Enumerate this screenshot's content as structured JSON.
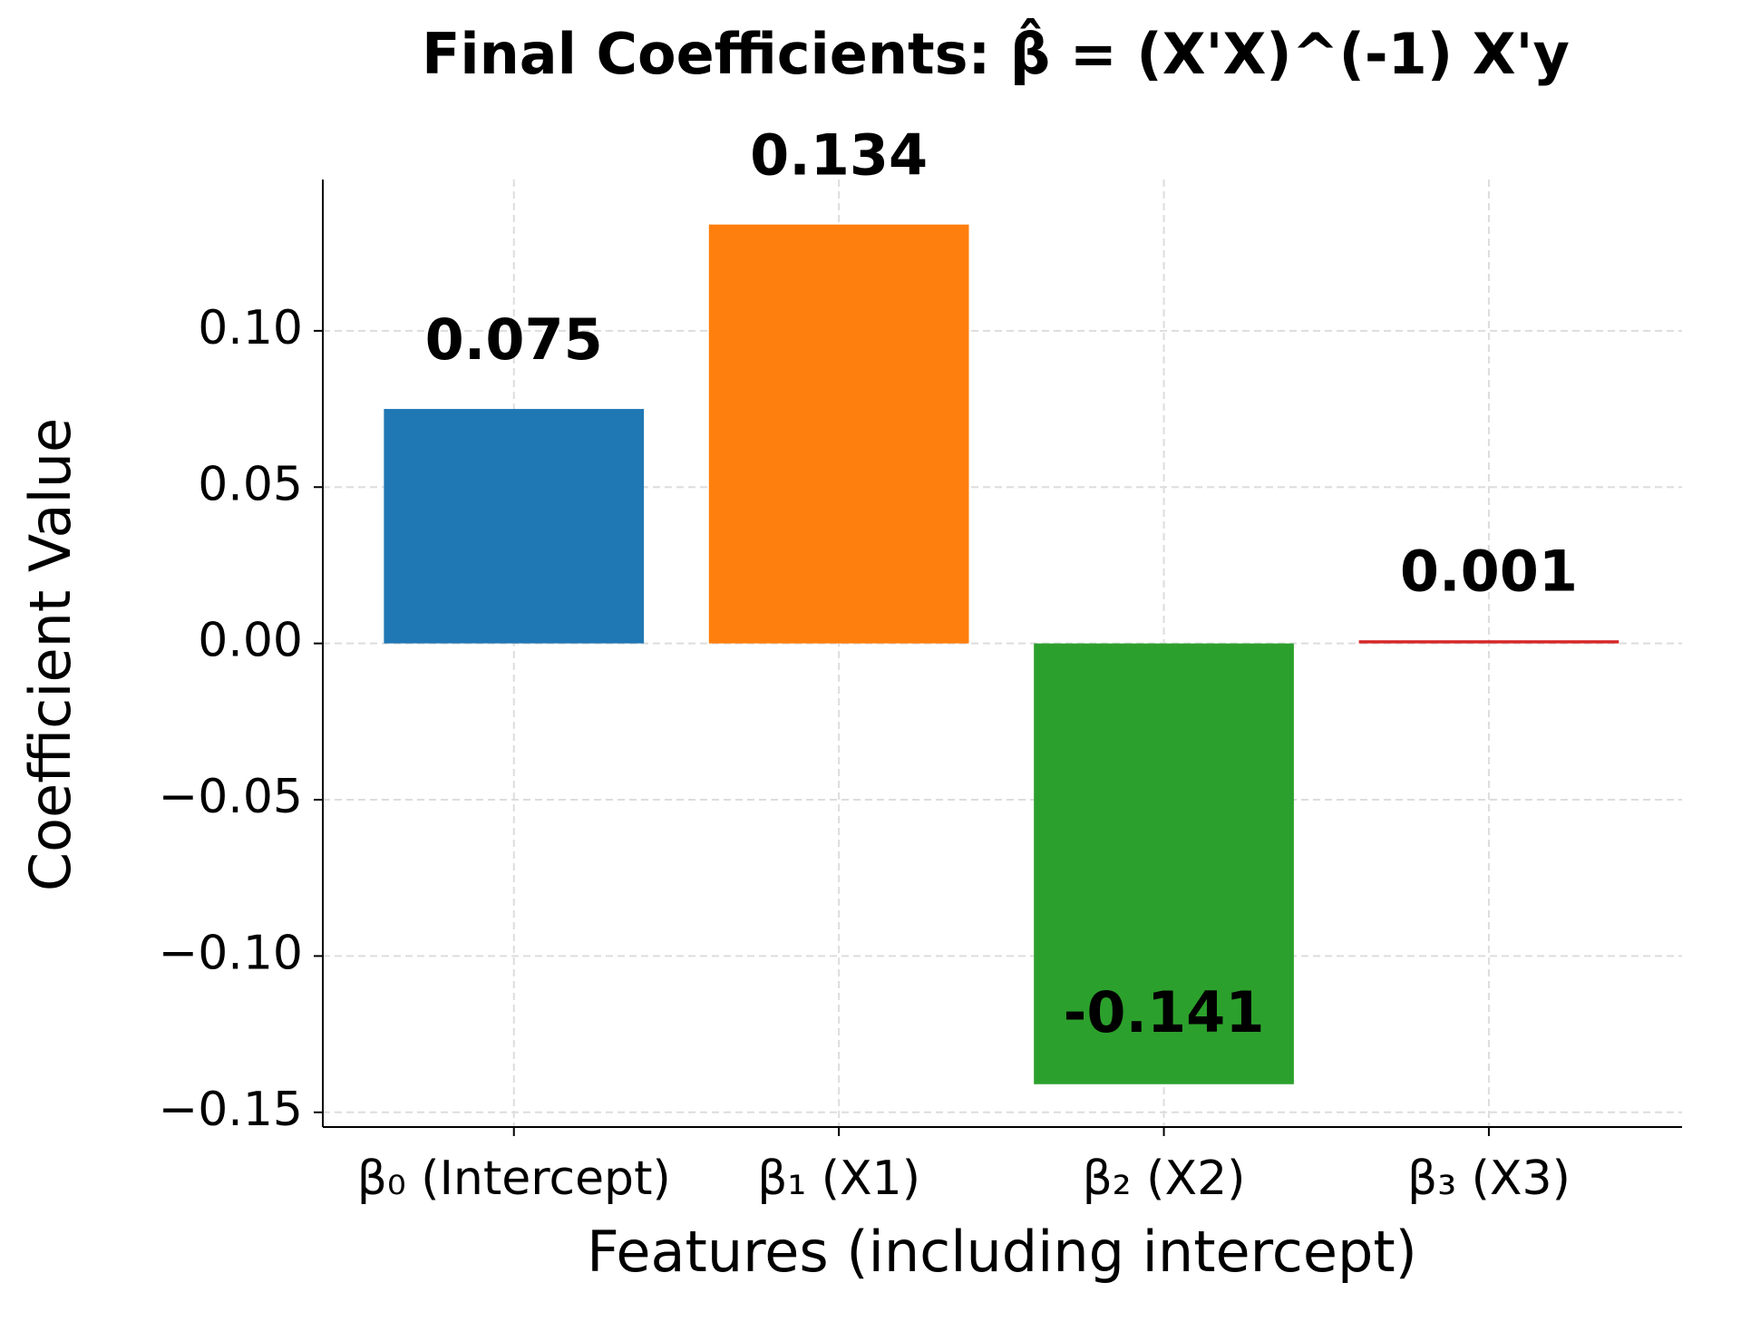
{
  "chart_data": {
    "type": "bar",
    "title": "Final Coefficients: β̂ = (X'X)^(-1) X'y",
    "xlabel": "Features (including intercept)",
    "ylabel": "Coefficient Value",
    "categories": [
      "β₀ (Intercept)",
      "β₁ (X1)",
      "β₂ (X2)",
      "β₃ (X3)"
    ],
    "values": [
      0.075,
      0.134,
      -0.141,
      0.001
    ],
    "colors": [
      "#1f77b4",
      "#ff7f0e",
      "#2ca02c",
      "#d62728"
    ],
    "ylim": [
      -0.1547,
      0.1484
    ],
    "yticks": [
      {
        "value": -0.15,
        "label": "−0.15"
      },
      {
        "value": -0.1,
        "label": "−0.10"
      },
      {
        "value": -0.05,
        "label": "−0.05"
      },
      {
        "value": 0,
        "label": "0.00"
      },
      {
        "value": 0.05,
        "label": "0.05"
      },
      {
        "value": 0.1,
        "label": "0.10"
      }
    ],
    "grid": true
  }
}
